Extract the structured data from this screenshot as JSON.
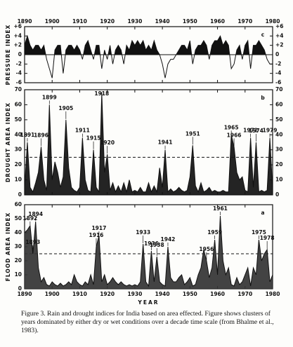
{
  "chart_data": [
    {
      "type": "area",
      "label": "c",
      "ylabel": "PRESSURE INDEX",
      "fill_mode": "positive",
      "color": "#111111",
      "x": [
        1890,
        1891,
        1892,
        1893,
        1894,
        1895,
        1896,
        1897,
        1898,
        1899,
        1900,
        1901,
        1902,
        1903,
        1904,
        1905,
        1906,
        1907,
        1908,
        1909,
        1910,
        1911,
        1912,
        1913,
        1914,
        1915,
        1916,
        1917,
        1918,
        1919,
        1920,
        1921,
        1922,
        1923,
        1924,
        1925,
        1926,
        1927,
        1928,
        1929,
        1930,
        1931,
        1932,
        1933,
        1934,
        1935,
        1936,
        1937,
        1938,
        1939,
        1940,
        1941,
        1942,
        1943,
        1944,
        1945,
        1946,
        1947,
        1948,
        1949,
        1950,
        1951,
        1952,
        1953,
        1954,
        1955,
        1956,
        1957,
        1958,
        1959,
        1960,
        1961,
        1962,
        1963,
        1964,
        1965,
        1966,
        1967,
        1968,
        1969,
        1970,
        1971,
        1972,
        1973,
        1974,
        1975,
        1976,
        1977,
        1978,
        1979,
        1980
      ],
      "values": [
        2,
        4,
        2,
        1,
        2,
        2,
        1,
        2,
        -1,
        -3,
        -5,
        1,
        2,
        2,
        -4,
        1,
        2,
        2,
        1,
        2,
        1,
        -1,
        2,
        3,
        1,
        -1,
        2,
        2,
        -3,
        1,
        -1,
        2,
        -2,
        1,
        2,
        1,
        -2,
        2,
        1,
        3,
        2,
        3,
        2,
        3,
        1,
        2,
        1,
        3,
        1,
        0,
        -2,
        -5,
        -2,
        -1,
        -1,
        0,
        1,
        2,
        2,
        1,
        3,
        -2,
        1,
        2,
        2,
        3,
        2,
        -1,
        2,
        3,
        3,
        4,
        2,
        3,
        2,
        -3,
        -2,
        1,
        2,
        -1,
        2,
        3,
        -3,
        2,
        2,
        3,
        2,
        1,
        -1,
        -2,
        -2
      ],
      "xlim": [
        1890,
        1980
      ],
      "xticks": [
        1890,
        1900,
        1910,
        1920,
        1930,
        1940,
        1950,
        1960,
        1970,
        1980
      ],
      "xtick_labels_side": "top",
      "ylim": [
        -6,
        6
      ],
      "yticks": [
        -6,
        -4,
        -2,
        0,
        {
          "value": 2,
          "label": "+2"
        },
        {
          "value": 4,
          "label": "+4"
        },
        {
          "value": 6,
          "label": "+6"
        }
      ],
      "y2lim": [
        -6,
        6
      ],
      "y2ticks": [
        -6,
        -4,
        -2,
        0,
        {
          "value": 2,
          "label": "+2"
        },
        {
          "value": 4,
          "label": "+4"
        },
        {
          "value": 6,
          "label": "+6"
        }
      ],
      "zero_line": 0
    },
    {
      "type": "area",
      "label": "b",
      "ylabel": "DROUGHT AREA INDEX",
      "fill_mode": "full",
      "color": "#111111",
      "x": [
        1890,
        1891,
        1892,
        1893,
        1894,
        1895,
        1896,
        1897,
        1898,
        1899,
        1900,
        1901,
        1902,
        1903,
        1904,
        1905,
        1906,
        1907,
        1908,
        1909,
        1910,
        1911,
        1912,
        1913,
        1914,
        1915,
        1916,
        1917,
        1918,
        1919,
        1920,
        1921,
        1922,
        1923,
        1924,
        1925,
        1926,
        1927,
        1928,
        1929,
        1930,
        1931,
        1932,
        1933,
        1934,
        1935,
        1936,
        1937,
        1938,
        1939,
        1940,
        1941,
        1942,
        1943,
        1944,
        1945,
        1946,
        1947,
        1948,
        1949,
        1950,
        1951,
        1952,
        1953,
        1954,
        1955,
        1956,
        1957,
        1958,
        1959,
        1960,
        1961,
        1962,
        1963,
        1964,
        1965,
        1966,
        1967,
        1968,
        1969,
        1970,
        1971,
        1972,
        1973,
        1974,
        1975,
        1976,
        1977,
        1978,
        1979,
        1980
      ],
      "values": [
        5,
        35,
        5,
        2,
        8,
        15,
        32,
        10,
        3,
        60,
        10,
        22,
        15,
        5,
        12,
        50,
        18,
        5,
        3,
        2,
        5,
        38,
        10,
        3,
        2,
        30,
        5,
        2,
        68,
        15,
        27,
        3,
        8,
        2,
        6,
        2,
        8,
        2,
        10,
        2,
        3,
        2,
        5,
        2,
        2,
        8,
        2,
        6,
        2,
        18,
        5,
        30,
        2,
        4,
        2,
        3,
        5,
        3,
        2,
        3,
        12,
        33,
        6,
        2,
        8,
        2,
        3,
        5,
        2,
        3,
        2,
        2,
        3,
        2,
        2,
        40,
        32,
        15,
        10,
        12,
        3,
        2,
        38,
        5,
        35,
        2,
        3,
        2,
        3,
        38,
        3
      ],
      "xlim": [
        1890,
        1980
      ],
      "xticks": [
        1890,
        1900,
        1910,
        1920,
        1930,
        1940,
        1950,
        1960,
        1970,
        1980
      ],
      "xtick_labels_side": "none",
      "ylim": [
        0,
        70
      ],
      "yticks": [
        0,
        10,
        20,
        30,
        40,
        50,
        60,
        70
      ],
      "y2lim": [
        0,
        70
      ],
      "y2ticks": [
        0,
        10,
        20,
        30,
        40,
        50,
        60,
        70
      ],
      "reference_line": 25,
      "annotated_years": [
        1891,
        1896,
        1899,
        1905,
        1911,
        1915,
        1918,
        1920,
        1941,
        1951,
        1965,
        1966,
        1972,
        1974,
        1979
      ]
    },
    {
      "type": "area",
      "label": "a",
      "ylabel": "FLOOD AREA INDEX",
      "xlabel": "YEAR",
      "fill_mode": "full",
      "color": "#333333",
      "x": [
        1890,
        1891,
        1892,
        1893,
        1894,
        1895,
        1896,
        1897,
        1898,
        1899,
        1900,
        1901,
        1902,
        1903,
        1904,
        1905,
        1906,
        1907,
        1908,
        1909,
        1910,
        1911,
        1912,
        1913,
        1914,
        1915,
        1916,
        1917,
        1918,
        1919,
        1920,
        1921,
        1922,
        1923,
        1924,
        1925,
        1926,
        1927,
        1928,
        1929,
        1930,
        1931,
        1932,
        1933,
        1934,
        1935,
        1936,
        1937,
        1938,
        1939,
        1940,
        1941,
        1942,
        1943,
        1944,
        1945,
        1946,
        1947,
        1948,
        1949,
        1950,
        1951,
        1952,
        1953,
        1954,
        1955,
        1956,
        1957,
        1958,
        1959,
        1960,
        1961,
        1962,
        1963,
        1964,
        1965,
        1966,
        1967,
        1968,
        1969,
        1970,
        1971,
        1972,
        1973,
        1974,
        1975,
        1976,
        1977,
        1978,
        1979,
        1980
      ],
      "values": [
        40,
        42,
        45,
        25,
        48,
        15,
        5,
        8,
        3,
        2,
        5,
        3,
        2,
        4,
        2,
        3,
        5,
        3,
        10,
        5,
        3,
        2,
        5,
        3,
        10,
        3,
        30,
        38,
        5,
        10,
        3,
        5,
        8,
        5,
        3,
        5,
        3,
        2,
        3,
        2,
        3,
        2,
        5,
        32,
        5,
        2,
        27,
        5,
        23,
        5,
        3,
        2,
        30,
        8,
        5,
        5,
        8,
        10,
        3,
        5,
        8,
        2,
        3,
        10,
        15,
        28,
        20,
        8,
        15,
        35,
        10,
        52,
        20,
        10,
        15,
        3,
        2,
        8,
        3,
        5,
        10,
        15,
        2,
        15,
        10,
        35,
        20,
        25,
        28,
        5,
        10
      ],
      "xlim": [
        1890,
        1980
      ],
      "xticks": [
        1890,
        1900,
        1910,
        1920,
        1930,
        1940,
        1950,
        1960,
        1970,
        1980
      ],
      "xtick_labels_side": "bottom",
      "ylim": [
        0,
        60
      ],
      "yticks": [
        0,
        10,
        20,
        30,
        40,
        50,
        60
      ],
      "reference_line": 25,
      "annotated_years": [
        1892,
        1893,
        1894,
        1916,
        1917,
        1933,
        1936,
        1938,
        1942,
        1956,
        1959,
        1961,
        1975,
        1978
      ]
    }
  ],
  "caption": "Figure 3.  Rain and drought indices for India based on area effected.  Figure shows clusters of years dominated by either dry or wet conditions over a decade time scale (from Bhalme et al., 1983)."
}
